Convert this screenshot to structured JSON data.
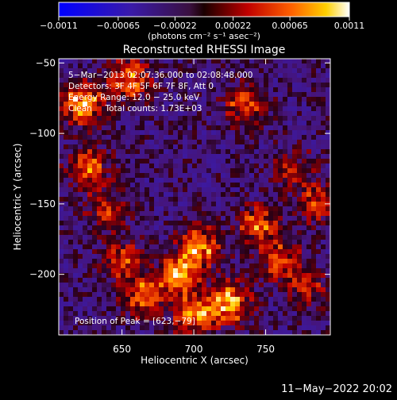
{
  "chart_data": {
    "type": "heatmap",
    "title": "Reconstructed RHESSI Image",
    "xlabel": "Heliocentric X (arcsec)",
    "ylabel": "Heliocentric Y (arcsec)",
    "xlim": [
      606,
      795
    ],
    "ylim": [
      -243,
      -47
    ],
    "x_ticks": [
      650,
      700,
      750
    ],
    "x_tick_labels": [
      "650",
      "700",
      "750"
    ],
    "y_ticks": [
      -50,
      -100,
      -150,
      -200
    ],
    "y_tick_labels": [
      "−50",
      "−100",
      "−150",
      "−200"
    ],
    "colorbar": {
      "min": -0.0011,
      "max": 0.0011,
      "tick_values": [
        -0.0011,
        -0.00065,
        -0.00022,
        0.00022,
        0.00065,
        0.0011
      ],
      "tick_labels": [
        "−0.0011",
        "−0.00065",
        "−0.00022",
        "0.00022",
        "0.00065",
        "0.0011"
      ],
      "units": "(photons cm⁻² s⁻¹ asec⁻²)"
    },
    "annotations": [
      "5−Mar−2013 02:07:36.000 to 02:08:48.000",
      "Detectors: 3F 4F 5F 6F 7F 8F, Att 0",
      "Energy Range: 12.0 − 25.0 keV",
      "Clean     Total counts: 1.73E+03"
    ],
    "peak_label": "Position of Peak = [623,−79]",
    "peak_position": [
      623,
      -79
    ],
    "hot_regions": [
      {
        "x": 623,
        "y": -79,
        "value": 0.0011
      },
      {
        "x": 655,
        "y": -62,
        "value": 0.0009
      },
      {
        "x": 627,
        "y": -125,
        "value": 0.0008
      },
      {
        "x": 640,
        "y": -155,
        "value": 0.0006
      },
      {
        "x": 735,
        "y": -80,
        "value": 0.0007
      },
      {
        "x": 690,
        "y": -200,
        "value": 0.001
      },
      {
        "x": 725,
        "y": -220,
        "value": 0.0011
      },
      {
        "x": 705,
        "y": -180,
        "value": 0.0009
      },
      {
        "x": 665,
        "y": -215,
        "value": 0.0008
      },
      {
        "x": 760,
        "y": -190,
        "value": 0.0007
      },
      {
        "x": 745,
        "y": -165,
        "value": 0.0008
      },
      {
        "x": 780,
        "y": -210,
        "value": 0.0005
      },
      {
        "x": 770,
        "y": -125,
        "value": 0.0005
      },
      {
        "x": 785,
        "y": -150,
        "value": 0.0006
      },
      {
        "x": 650,
        "y": -190,
        "value": 0.0006
      },
      {
        "x": 700,
        "y": -230,
        "value": 0.0009
      }
    ],
    "background_value": -0.0002,
    "grid": false
  },
  "footer": {
    "timestamp": "11−May−2022 20:02"
  }
}
